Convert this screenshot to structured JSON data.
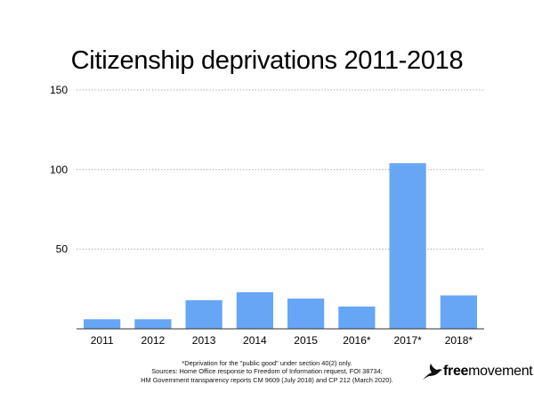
{
  "chart_data": {
    "type": "bar",
    "title": "Citizenship deprivations 2011-2018",
    "categories": [
      "2011",
      "2012",
      "2013",
      "2014",
      "2015",
      "2016*",
      "2017*",
      "2018*"
    ],
    "values": [
      6,
      6,
      18,
      23,
      19,
      14,
      104,
      21
    ],
    "ylim": [
      0,
      150
    ],
    "yticks": [
      50,
      100,
      150
    ],
    "ytick_labels": [
      "50",
      "100",
      "150"
    ],
    "xlabel": "",
    "ylabel": "",
    "grid": true,
    "bar_color": "#66a6f5"
  },
  "footnote": {
    "line1": "*Deprivation for the \"public good\" under section 40(2) only.",
    "line2": "Sources: Home Office response to Freedom of Information request, FOI 38734;",
    "line3": "HM Government transparency reports CM 9609 (July 2018) and CP 212 (March 2020)."
  },
  "brand": {
    "bold": "free",
    "light": "movement",
    "icon": "bird-icon"
  }
}
